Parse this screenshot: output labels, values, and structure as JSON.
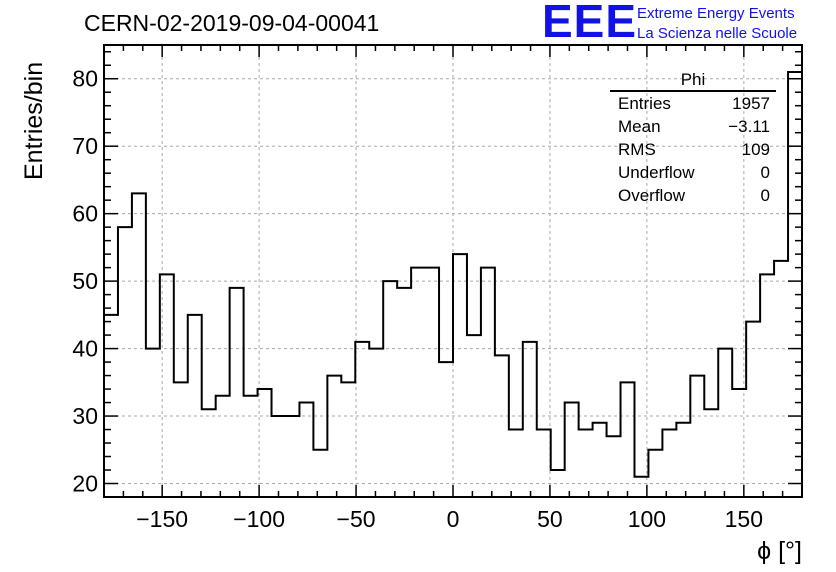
{
  "header": {
    "title": "CERN-02-2019-09-04-00041",
    "logo": "EEE",
    "logo_line1": "Extreme Energy Events",
    "logo_line2": "La Scienza nelle Scuole"
  },
  "stats": {
    "title": "Phi",
    "rows": [
      {
        "label": "Entries",
        "value": "1957"
      },
      {
        "label": "Mean",
        "value": "−3.11"
      },
      {
        "label": "RMS",
        "value": "109"
      },
      {
        "label": "Underflow",
        "value": "0"
      },
      {
        "label": "Overflow",
        "value": "0"
      }
    ]
  },
  "chart_data": {
    "type": "histogram",
    "title": "CERN-02-2019-09-04-00041",
    "xlabel": "ϕ [°]",
    "ylabel": "Entries/bin",
    "xlim": [
      -180,
      180
    ],
    "ylim": [
      18,
      85
    ],
    "bin_width": 7.2,
    "xticks": [
      -150,
      -100,
      -50,
      0,
      50,
      100,
      150
    ],
    "xtick_labels": [
      "−150",
      "−100",
      "−50",
      "0",
      "50",
      "100",
      "150"
    ],
    "yticks": [
      20,
      30,
      40,
      50,
      60,
      70,
      80
    ],
    "ytick_labels": [
      "20",
      "30",
      "40",
      "50",
      "60",
      "70",
      "80"
    ],
    "grid": true,
    "values": [
      45,
      58,
      63,
      40,
      51,
      35,
      45,
      31,
      33,
      49,
      33,
      34,
      30,
      30,
      32,
      25,
      36,
      35,
      41,
      40,
      50,
      49,
      52,
      52,
      38,
      54,
      42,
      52,
      39,
      28,
      41,
      28,
      22,
      32,
      28,
      29,
      27,
      35,
      21,
      25,
      28,
      29,
      36,
      31,
      40,
      34,
      44,
      51,
      53,
      81
    ],
    "line_color": "#000000"
  }
}
